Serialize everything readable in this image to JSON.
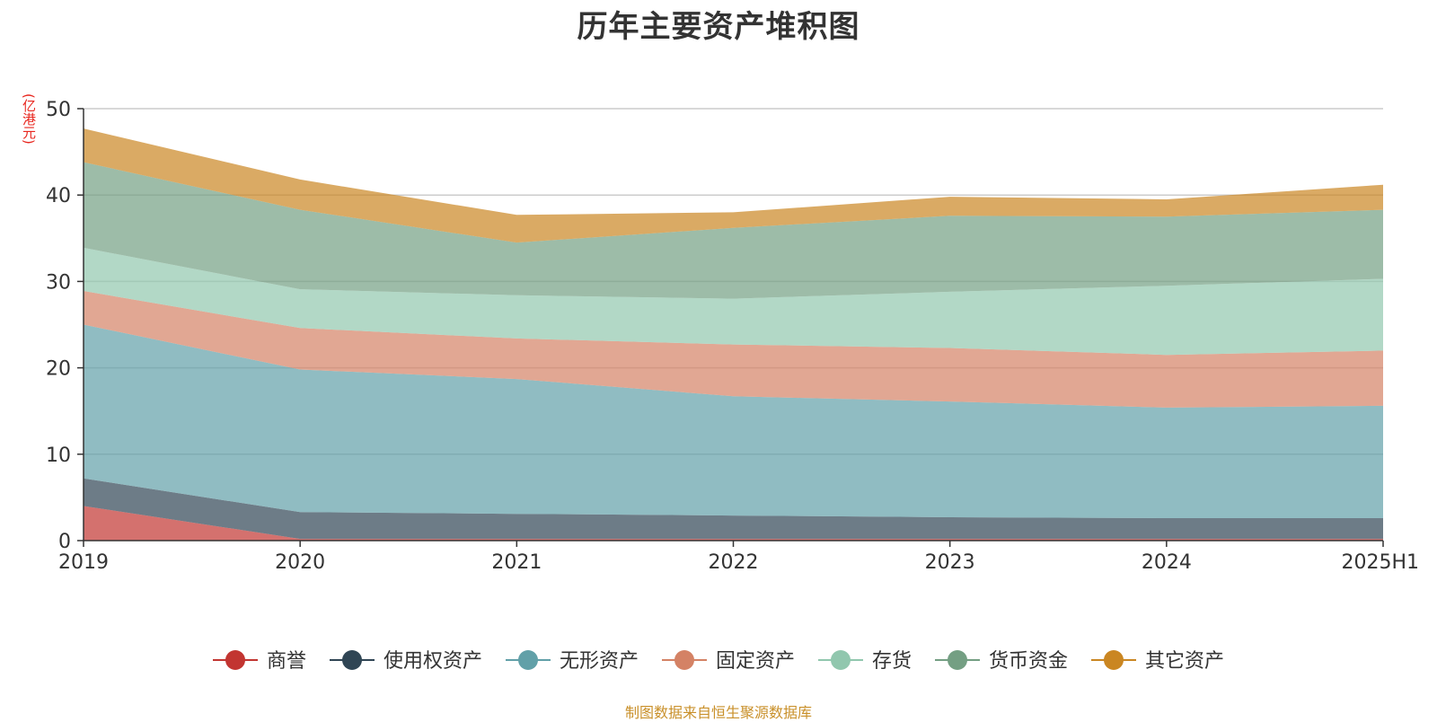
{
  "chart_data": {
    "type": "area",
    "stacked": true,
    "title": "历年主要资产堆积图",
    "ylabel": "(亿港元)",
    "xlabel": "",
    "categories": [
      "2019",
      "2020",
      "2021",
      "2022",
      "2023",
      "2024",
      "2025H1"
    ],
    "ylim": [
      0,
      50
    ],
    "yticks": [
      0,
      10,
      20,
      30,
      40,
      50
    ],
    "grid": true,
    "legend_position": "bottom",
    "series": [
      {
        "name": "商誉",
        "color": "#c23531",
        "values": [
          4.0,
          0.2,
          0.2,
          0.2,
          0.2,
          0.2,
          0.2
        ]
      },
      {
        "name": "使用权资产",
        "color": "#2f4554",
        "values": [
          3.2,
          3.1,
          2.9,
          2.7,
          2.5,
          2.4,
          2.4
        ]
      },
      {
        "name": "无形资产",
        "color": "#61a0a8",
        "values": [
          17.8,
          16.5,
          15.6,
          13.8,
          13.4,
          12.8,
          13.0
        ]
      },
      {
        "name": "固定资产",
        "color": "#d48265",
        "values": [
          3.9,
          4.8,
          4.7,
          6.0,
          6.2,
          6.1,
          6.4
        ]
      },
      {
        "name": "存货",
        "color": "#91c7ae",
        "values": [
          5.0,
          4.5,
          5.0,
          5.3,
          6.5,
          8.0,
          8.3
        ]
      },
      {
        "name": "货币资金",
        "color": "#749f83",
        "values": [
          9.9,
          9.2,
          6.1,
          8.2,
          8.8,
          8.0,
          8.0
        ]
      },
      {
        "name": "其它资产",
        "color": "#ca8622",
        "values": [
          3.9,
          3.5,
          3.2,
          1.8,
          2.2,
          2.0,
          2.9
        ]
      }
    ]
  },
  "source_text": "制图数据来自恒生聚源数据库"
}
